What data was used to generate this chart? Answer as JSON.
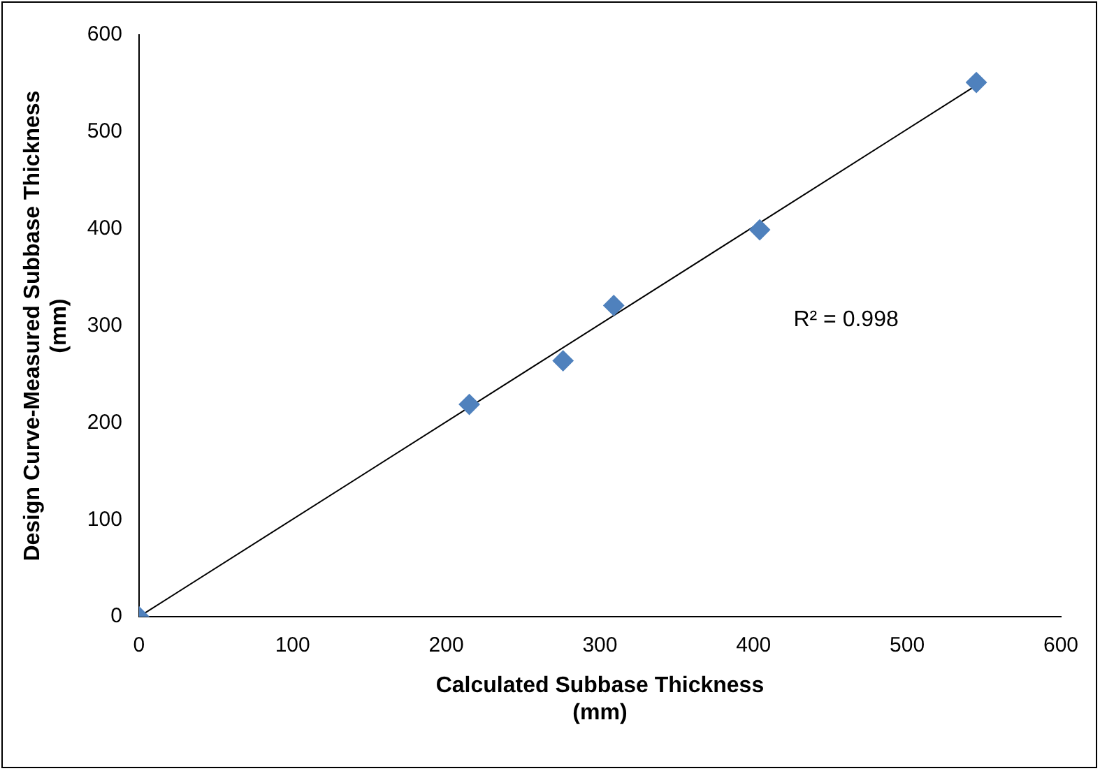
{
  "chart_data": {
    "type": "scatter",
    "xlabel": "Calculated Subbase Thickness\n(mm)",
    "ylabel": "Design Curve-Measured Subbase Thickness\n(mm)",
    "xlim": [
      0,
      600
    ],
    "xticks": [
      0,
      100,
      200,
      300,
      400,
      500,
      600
    ],
    "ylim": [
      0,
      600
    ],
    "yticks": [
      0,
      100,
      200,
      300,
      400,
      500,
      600
    ],
    "grid": false,
    "legend": false,
    "series": [
      {
        "marker": "diamond",
        "color": "#4f81bd",
        "x": [
          0,
          215,
          276,
          309,
          404,
          545
        ],
        "values": [
          0,
          219,
          264,
          321,
          399,
          551
        ]
      },
      {
        "type": "line",
        "marker": "none",
        "color": "#000000",
        "x": [
          0,
          545
        ],
        "values": [
          0,
          548
        ]
      }
    ],
    "annotations": [
      "R² = 0.998"
    ]
  }
}
